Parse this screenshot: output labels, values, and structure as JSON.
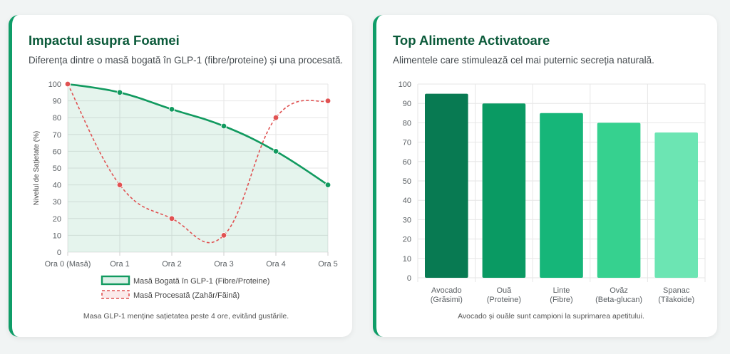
{
  "left_card": {
    "title": "Impactul asupra Foamei",
    "description": "Diferența dintre o masă bogată în GLP-1 (fibre/proteine) și una procesată.",
    "footnote": "Masa GLP-1 menține sațietatea peste 4 ore, evitând gustările."
  },
  "right_card": {
    "title": "Top Alimente Activatoare",
    "description": "Alimentele care stimulează cel mai puternic secreția naturală.",
    "footnote": "Avocado și ouăle sunt campioni la suprimarea apetitului."
  },
  "colors": {
    "accent": "#0f9d68",
    "title": "#0b5a3a",
    "line_glp1": "#119a5f",
    "line_processed": "#e05252",
    "bars": [
      "#087a52",
      "#0a9a63",
      "#16b679",
      "#36d18f",
      "#6ce5b3"
    ]
  },
  "chart_data": [
    {
      "type": "line",
      "title": "",
      "xlabel": "",
      "ylabel": "Nivelul de Sațietate (%)",
      "ylim": [
        0,
        100
      ],
      "yticks": [
        0,
        10,
        20,
        30,
        40,
        50,
        60,
        70,
        80,
        90,
        100
      ],
      "grid": true,
      "legend": "bottom",
      "categories": [
        "Ora 0 (Masă)",
        "Ora 1",
        "Ora 2",
        "Ora 3",
        "Ora 4",
        "Ora 5"
      ],
      "series": [
        {
          "name": "Masă Bogată în GLP-1 (Fibre/Proteine)",
          "values": [
            100,
            95,
            85,
            75,
            60,
            40
          ],
          "style": "solid",
          "fill": true
        },
        {
          "name": "Masă Procesată (Zahăr/Făină)",
          "values": [
            100,
            40,
            20,
            10,
            80,
            90
          ],
          "style": "dashed",
          "fill": false
        }
      ]
    },
    {
      "type": "bar",
      "title": "",
      "xlabel": "",
      "ylabel": "",
      "ylim": [
        0,
        100
      ],
      "yticks": [
        0,
        10,
        20,
        30,
        40,
        50,
        60,
        70,
        80,
        90,
        100
      ],
      "grid": true,
      "categories": [
        [
          "Avocado",
          "(Grăsimi)"
        ],
        [
          "Ouă",
          "(Proteine)"
        ],
        [
          "Linte",
          "(Fibre)"
        ],
        [
          "Ovăz",
          "(Beta-glucan)"
        ],
        [
          "Spanac",
          "(Tilakoide)"
        ]
      ],
      "values": [
        95,
        90,
        85,
        80,
        75
      ]
    }
  ]
}
